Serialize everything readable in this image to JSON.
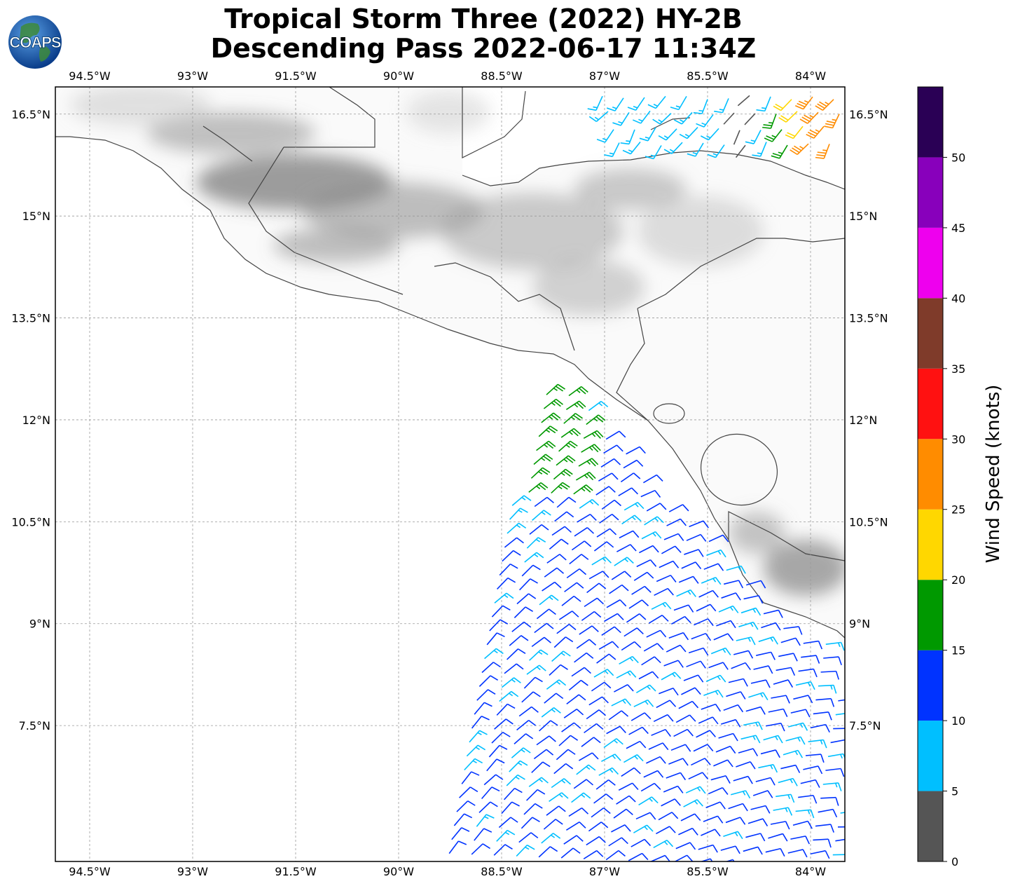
{
  "title": {
    "line1": "Tropical Storm Three (2022) HY-2B",
    "line2": "Descending Pass 2022-06-17 11:34Z"
  },
  "logo": {
    "text": "COAPS",
    "icon": "earth-globe-icon"
  },
  "map": {
    "lon_range": [
      -95,
      -83.5
    ],
    "lat_range": [
      5.5,
      16.9
    ],
    "lon_ticks": [
      {
        "value": -94.5,
        "label": "94.5°W"
      },
      {
        "value": -93.0,
        "label": "93°W"
      },
      {
        "value": -91.5,
        "label": "91.5°W"
      },
      {
        "value": -90.0,
        "label": "90°W"
      },
      {
        "value": -88.5,
        "label": "88.5°W"
      },
      {
        "value": -87.0,
        "label": "87°W"
      },
      {
        "value": -85.5,
        "label": "85.5°W"
      },
      {
        "value": -84.0,
        "label": "84°W"
      }
    ],
    "lat_ticks": [
      {
        "value": 16.5,
        "label": "16.5°N"
      },
      {
        "value": 15.0,
        "label": "15°N"
      },
      {
        "value": 13.5,
        "label": "13.5°N"
      },
      {
        "value": 12.0,
        "label": "12°N"
      },
      {
        "value": 10.5,
        "label": "10.5°N"
      },
      {
        "value": 9.0,
        "label": "9°N"
      },
      {
        "value": 7.5,
        "label": "7.5°N"
      }
    ],
    "grid": true,
    "wind_barbs": "HY-2B descending pass swath: southwesterly 10-15 kt winds over the Pacific south of 12°N, 15-20 kt near 11.5-12.5°N 88°W, 20-30 kt in the Caribbean near 16°N 84°W"
  },
  "colorbar": {
    "label": "Wind Speed (knots)",
    "range": [
      0,
      55
    ],
    "ticks": [
      0,
      5,
      10,
      15,
      20,
      25,
      30,
      35,
      40,
      45,
      50
    ],
    "bins": [
      {
        "from": 0,
        "to": 5,
        "color": "#555555"
      },
      {
        "from": 5,
        "to": 10,
        "color": "#00bfff"
      },
      {
        "from": 10,
        "to": 15,
        "color": "#0033ff"
      },
      {
        "from": 15,
        "to": 20,
        "color": "#009900"
      },
      {
        "from": 20,
        "to": 25,
        "color": "#ffd700"
      },
      {
        "from": 25,
        "to": 30,
        "color": "#ff8c00"
      },
      {
        "from": 30,
        "to": 35,
        "color": "#ff1111"
      },
      {
        "from": 35,
        "to": 40,
        "color": "#7f3b2a"
      },
      {
        "from": 40,
        "to": 45,
        "color": "#ee00ee"
      },
      {
        "from": 45,
        "to": 50,
        "color": "#8800bb"
      },
      {
        "from": 50,
        "to": 55,
        "color": "#2a0055"
      }
    ]
  }
}
